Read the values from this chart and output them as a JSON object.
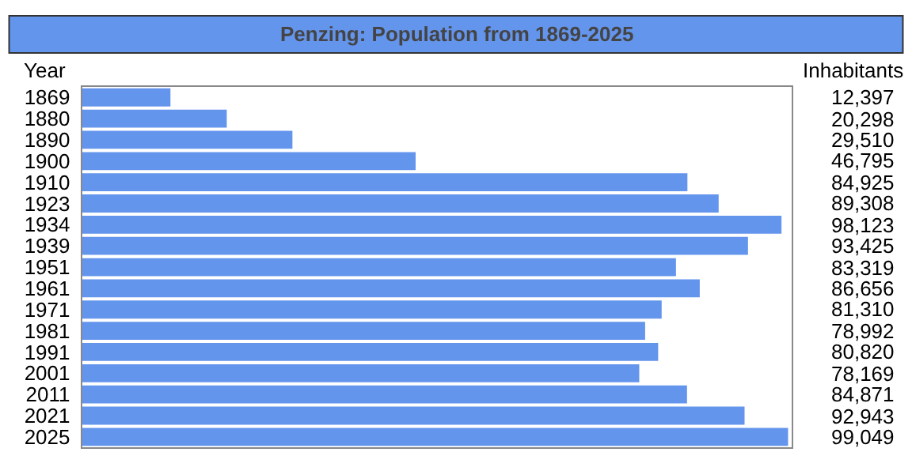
{
  "chart_data": {
    "type": "bar",
    "orientation": "horizontal",
    "title": "Penzing: Population from 1869-2025",
    "ylabel": "Year",
    "xlabel": "Inhabitants",
    "categories": [
      "1869",
      "1880",
      "1890",
      "1900",
      "1910",
      "1923",
      "1934",
      "1939",
      "1951",
      "1961",
      "1971",
      "1981",
      "1991",
      "2001",
      "2011",
      "2021",
      "2025"
    ],
    "values": [
      12397,
      20298,
      29510,
      46795,
      84925,
      89308,
      98123,
      93425,
      83319,
      86656,
      81310,
      78992,
      80820,
      78169,
      84871,
      92943,
      99049
    ],
    "value_labels": [
      "12,397",
      "20,298",
      "29,510",
      "46,795",
      "84,925",
      "89,308",
      "98,123",
      "93,425",
      "83,319",
      "86,656",
      "81,310",
      "78,992",
      "80,820",
      "78,169",
      "84,871",
      "92,943",
      "99,049"
    ],
    "color": "#6495ed",
    "relative": false,
    "grid": false,
    "legend": false
  }
}
